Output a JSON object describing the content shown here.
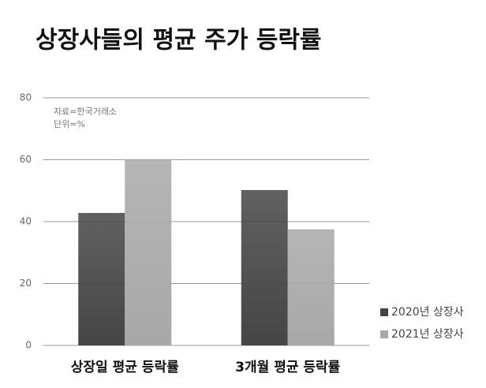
{
  "chart_data": {
    "type": "bar",
    "title": "상장사들의 평균 주가 등락률",
    "notes": [
      "자료=한국거래소",
      "단위=%"
    ],
    "categories": [
      "상장일 평균 등락률",
      "3개월 평균 등락률"
    ],
    "series": [
      {
        "name": "2020년 상장사",
        "color": "#454545",
        "values": [
          42.8,
          50.2
        ]
      },
      {
        "name": "2021년 상장사",
        "color": "#a8a8a8",
        "values": [
          60,
          37.5
        ]
      }
    ],
    "ylim": [
      0,
      80
    ],
    "yticks": [
      0,
      20,
      40,
      60,
      80
    ],
    "grid": true,
    "legend": "bottom-right"
  }
}
